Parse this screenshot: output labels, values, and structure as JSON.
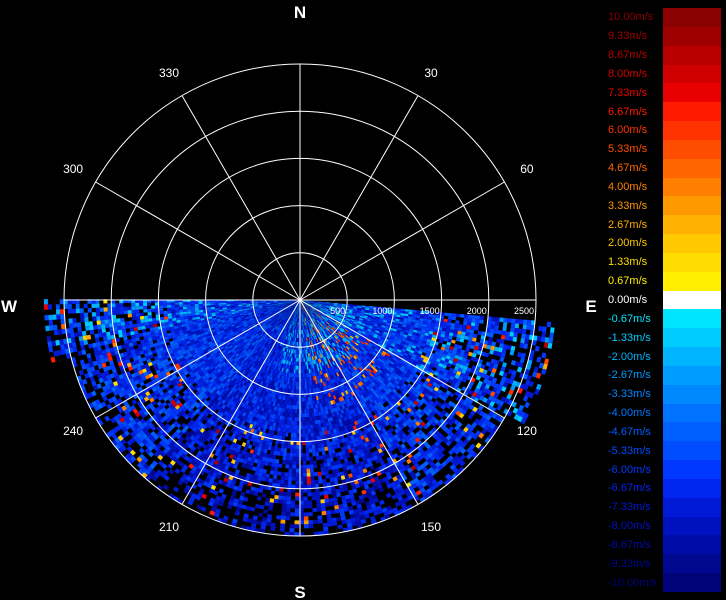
{
  "chart_data": {
    "type": "polar-radial-velocity",
    "cardinals": {
      "n": "N",
      "e": "E",
      "s": "S",
      "w": "W"
    },
    "bearings": [
      {
        "deg": 30,
        "label": "30"
      },
      {
        "deg": 60,
        "label": "60"
      },
      {
        "deg": 120,
        "label": "120"
      },
      {
        "deg": 150,
        "label": "150"
      },
      {
        "deg": 210,
        "label": "210"
      },
      {
        "deg": 240,
        "label": "240"
      },
      {
        "deg": 300,
        "label": "300"
      },
      {
        "deg": 330,
        "label": "330"
      }
    ],
    "range_rings": [
      {
        "value": 500,
        "label": "500"
      },
      {
        "value": 1000,
        "label": "1000"
      },
      {
        "value": 1500,
        "label": "1500"
      },
      {
        "value": 2000,
        "label": "2000"
      },
      {
        "value": 2500,
        "label": "2500"
      }
    ],
    "max_range": 2500,
    "sector_deg": [
      95,
      270
    ],
    "colorbar": [
      {
        "label": "10.00m/s",
        "value": 10.0,
        "color": "#8b0000"
      },
      {
        "label": "9.33m/s",
        "value": 9.33,
        "color": "#9e0000"
      },
      {
        "label": "8.67m/s",
        "value": 8.67,
        "color": "#b80000"
      },
      {
        "label": "8.00m/s",
        "value": 8.0,
        "color": "#d00000"
      },
      {
        "label": "7.33m/s",
        "value": 7.33,
        "color": "#e80000"
      },
      {
        "label": "6.67m/s",
        "value": 6.67,
        "color": "#ff1a00"
      },
      {
        "label": "6.00m/s",
        "value": 6.0,
        "color": "#ff3300"
      },
      {
        "label": "5.33m/s",
        "value": 5.33,
        "color": "#ff4d00"
      },
      {
        "label": "4.67m/s",
        "value": 4.67,
        "color": "#ff6600"
      },
      {
        "label": "4.00m/s",
        "value": 4.0,
        "color": "#ff8000"
      },
      {
        "label": "3.33m/s",
        "value": 3.33,
        "color": "#ff9900"
      },
      {
        "label": "2.67m/s",
        "value": 2.67,
        "color": "#ffb000"
      },
      {
        "label": "2.00m/s",
        "value": 2.0,
        "color": "#ffc800"
      },
      {
        "label": "1.33m/s",
        "value": 1.33,
        "color": "#ffdd00"
      },
      {
        "label": "0.67m/s",
        "value": 0.67,
        "color": "#ffee00"
      },
      {
        "label": "0.00m/s",
        "value": 0.0,
        "color": "#ffffff"
      },
      {
        "label": "-0.67m/s",
        "value": -0.67,
        "color": "#00e5ff"
      },
      {
        "label": "-1.33m/s",
        "value": -1.33,
        "color": "#00ccff"
      },
      {
        "label": "-2.00m/s",
        "value": -2.0,
        "color": "#00b4ff"
      },
      {
        "label": "-2.67m/s",
        "value": -2.67,
        "color": "#009cff"
      },
      {
        "label": "-3.33m/s",
        "value": -3.33,
        "color": "#0088ff"
      },
      {
        "label": "-4.00m/s",
        "value": -4.0,
        "color": "#0074ff"
      },
      {
        "label": "-4.67m/s",
        "value": -4.67,
        "color": "#0060ff"
      },
      {
        "label": "-5.33m/s",
        "value": -5.33,
        "color": "#004cff"
      },
      {
        "label": "-6.00m/s",
        "value": -6.0,
        "color": "#0038ff"
      },
      {
        "label": "-6.67m/s",
        "value": -6.67,
        "color": "#0026f0"
      },
      {
        "label": "-7.33m/s",
        "value": -7.33,
        "color": "#001ad8"
      },
      {
        "label": "-8.00m/s",
        "value": -8.0,
        "color": "#0012c0"
      },
      {
        "label": "-8.67m/s",
        "value": -8.67,
        "color": "#000ca8"
      },
      {
        "label": "-9.33m/s",
        "value": -9.33,
        "color": "#000890"
      },
      {
        "label": "-10.00m/s",
        "value": -10.0,
        "color": "#000478"
      }
    ]
  }
}
